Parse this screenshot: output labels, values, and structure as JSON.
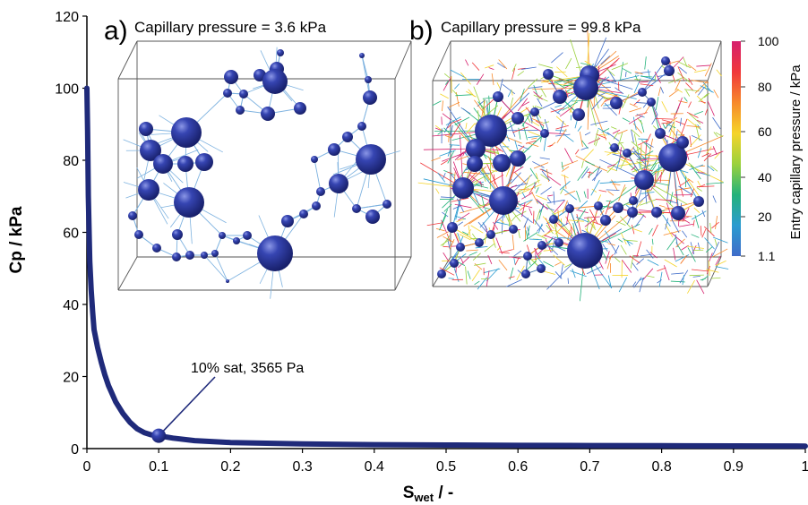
{
  "chart_data": {
    "type": "line",
    "xlabel_main": "S",
    "xlabel_sub": "wet",
    "xlabel_suffix": " / -",
    "ylabel": "Cp / kPa",
    "xlim": [
      0,
      1
    ],
    "ylim": [
      0,
      120
    ],
    "x_ticks": [
      "0",
      "0.1",
      "0.2",
      "0.3",
      "0.4",
      "0.5",
      "0.6",
      "0.7",
      "0.8",
      "0.9",
      "1"
    ],
    "y_ticks": [
      "0",
      "20",
      "40",
      "60",
      "80",
      "100",
      "120"
    ],
    "series": [
      {
        "x": [
          0,
          0.001,
          0.002,
          0.004,
          0.006,
          0.008,
          0.01,
          0.015,
          0.02,
          0.025,
          0.03,
          0.04,
          0.05,
          0.06,
          0.07,
          0.08,
          0.09,
          0.1,
          0.12,
          0.15,
          0.2,
          0.3,
          0.4,
          0.5,
          0.6,
          0.7,
          0.8,
          0.9,
          1.0
        ],
        "y": [
          100,
          88,
          70,
          52,
          44,
          38,
          33,
          28,
          24,
          20.5,
          17.5,
          13,
          9.8,
          7.3,
          5.5,
          4.4,
          3.8,
          3.565,
          2.9,
          2.2,
          1.7,
          1.3,
          1.1,
          1.0,
          0.9,
          0.85,
          0.8,
          0.75,
          0.7
        ],
        "color": "#1f2a7a"
      }
    ],
    "annotation": {
      "text": "10% sat, 3565 Pa",
      "x": 0.1,
      "y": 3.565
    },
    "insets": [
      {
        "tag": "a)",
        "title": "Capillary pressure = 3.6 kPa"
      },
      {
        "tag": "b)",
        "title": "Capillary pressure = 99.8 kPa"
      }
    ],
    "colorbar": {
      "label": "Entry capillary pressure / kPa",
      "ticks": [
        "100",
        "80",
        "60",
        "40",
        "20",
        "1.1"
      ],
      "colors": [
        "#d6206e",
        "#f0373a",
        "#f7892b",
        "#f5d42a",
        "#9bd13c",
        "#23b27a",
        "#2a9bd0",
        "#3f6cc9"
      ]
    }
  }
}
